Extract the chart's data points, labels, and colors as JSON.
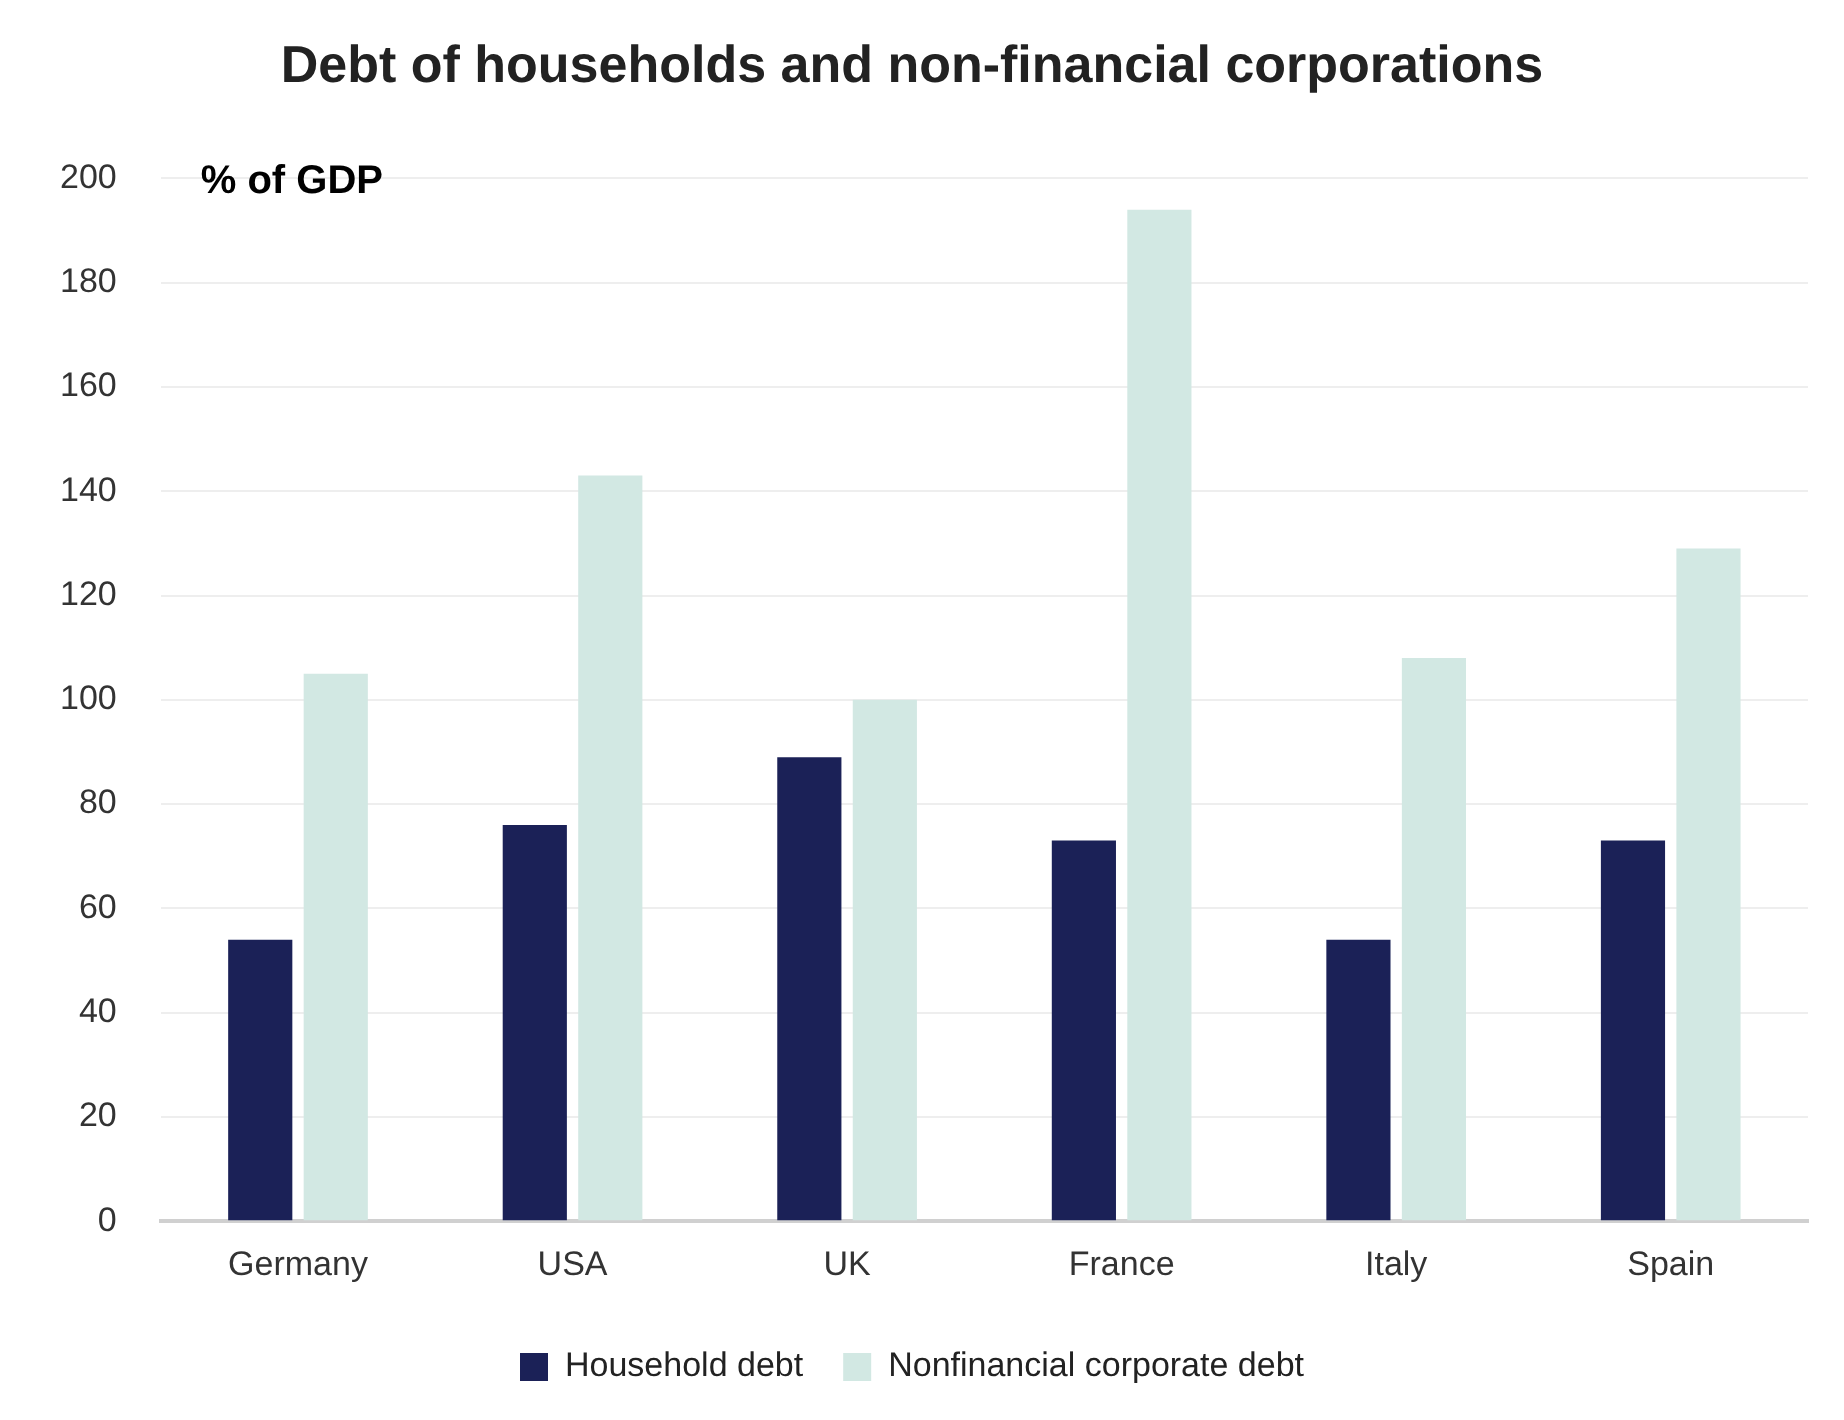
{
  "chart_data": {
    "type": "bar",
    "title": "Debt of households and non-financial corporations",
    "ylabel": "% of GDP",
    "categories": [
      "Germany",
      "USA",
      "UK",
      "France",
      "Italy",
      "Spain"
    ],
    "series": [
      {
        "name": "Household debt",
        "color": "#1b2157",
        "values": [
          54,
          76,
          89,
          73,
          54,
          73
        ]
      },
      {
        "name": "Nonfinancial corporate debt",
        "color": "#d2e8e3",
        "values": [
          105,
          143,
          100,
          194,
          108,
          129
        ]
      }
    ],
    "ylim": [
      0,
      200
    ],
    "yticks": [
      0,
      20,
      40,
      60,
      80,
      100,
      120,
      140,
      160,
      180,
      200
    ],
    "grid": "y",
    "legend": "bottom"
  }
}
